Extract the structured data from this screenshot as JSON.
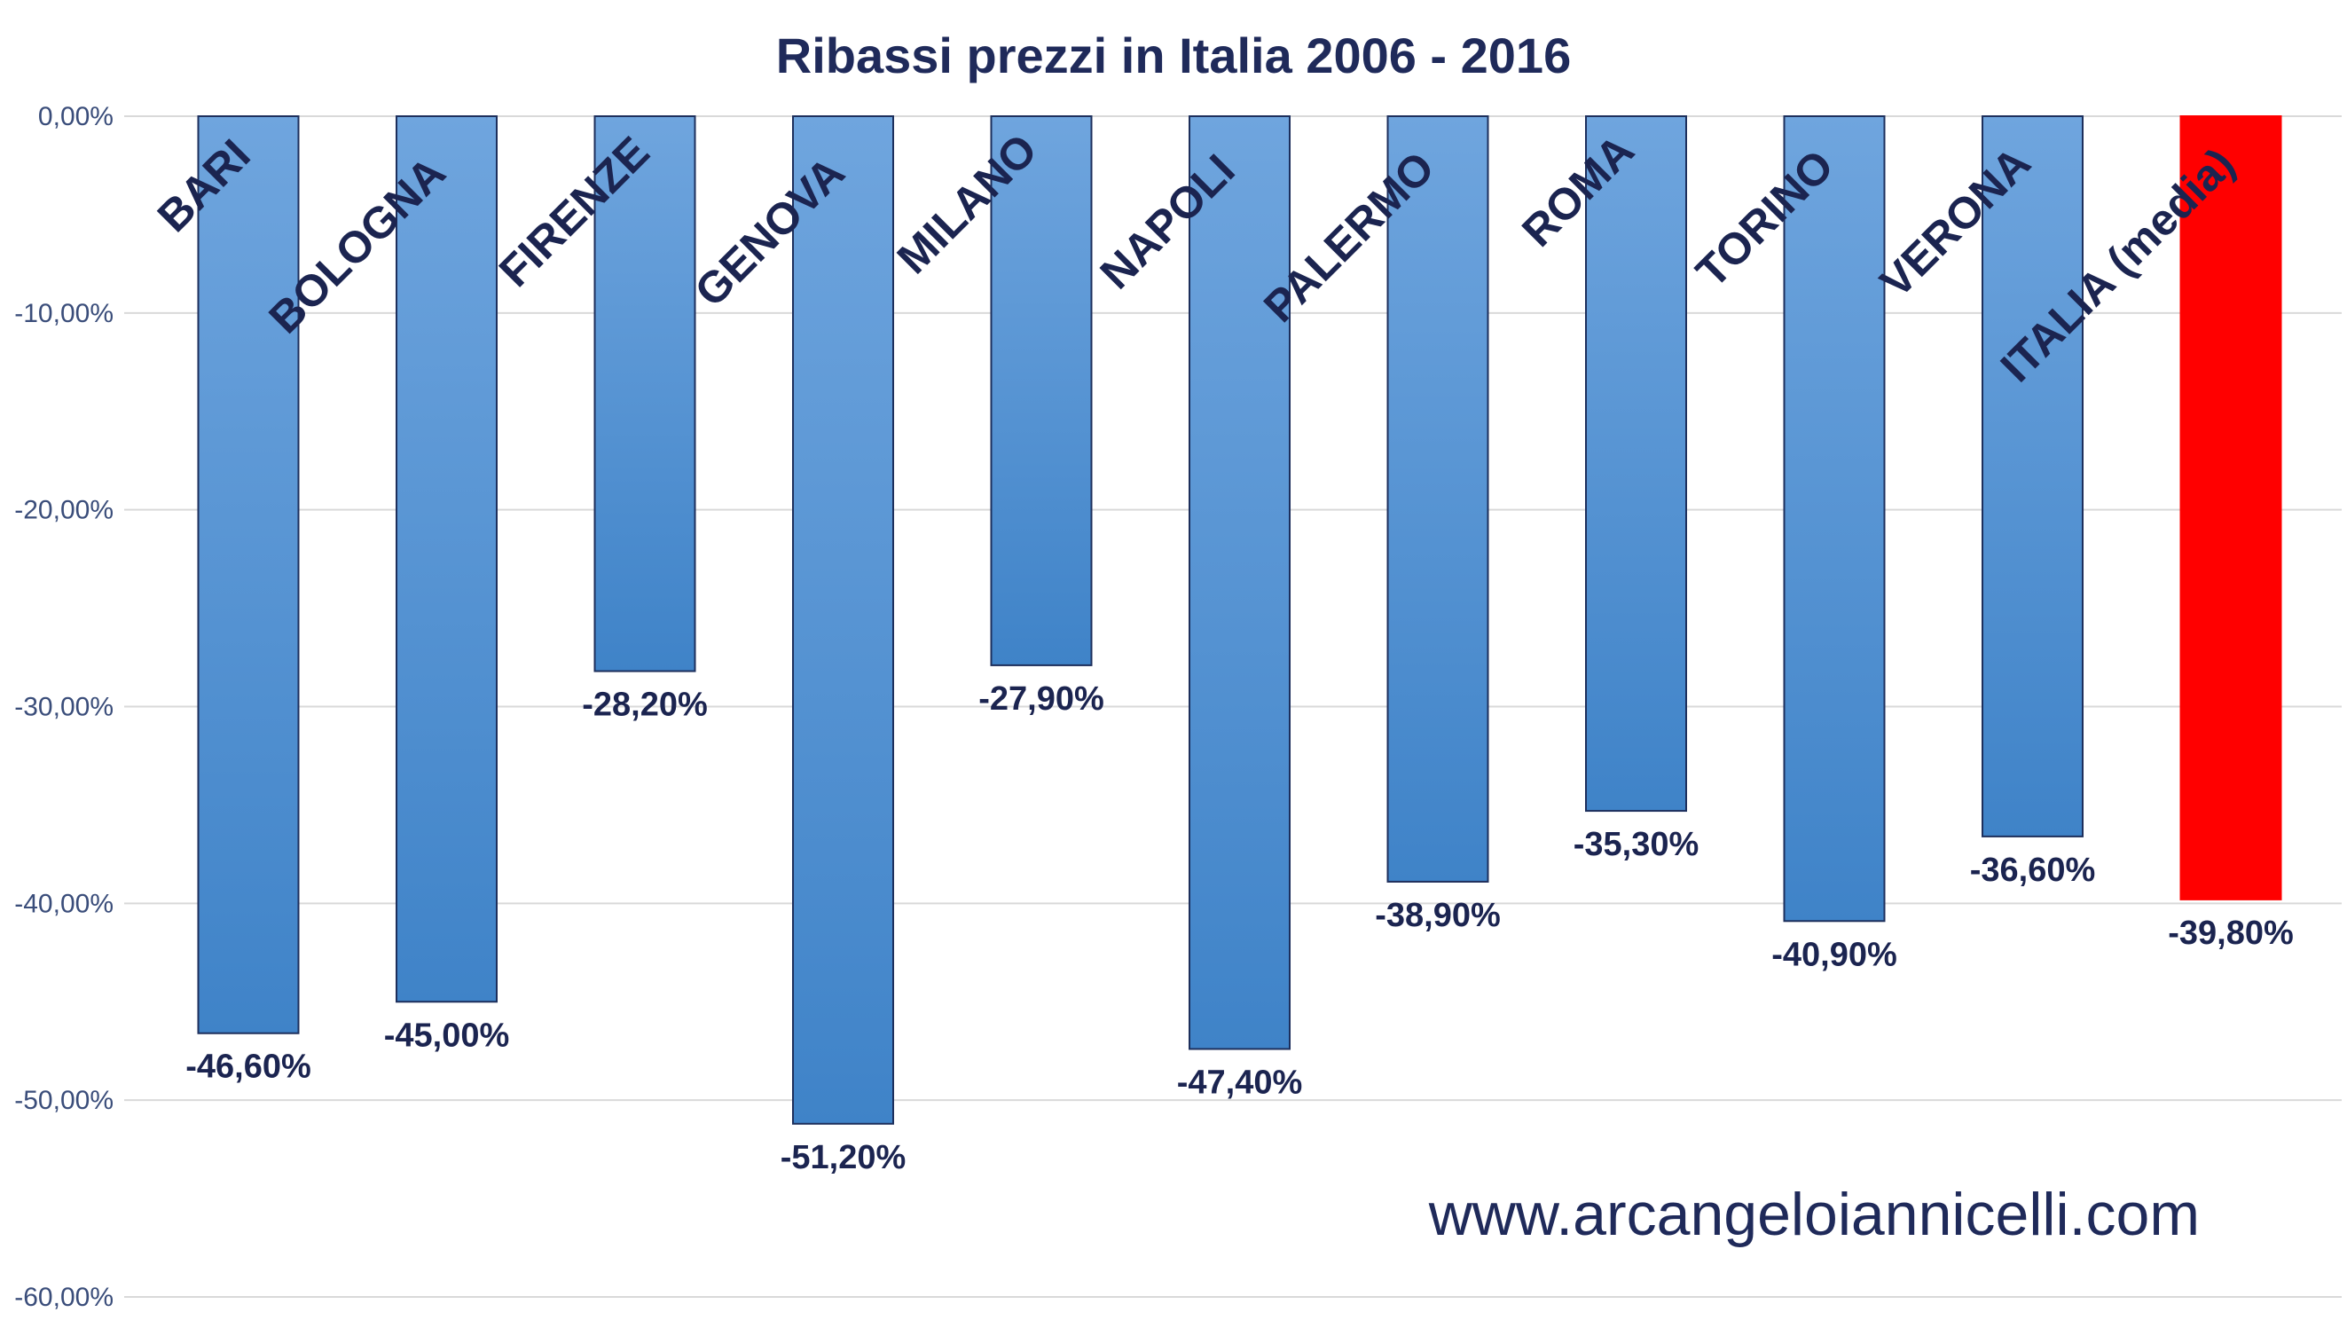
{
  "chart_data": {
    "type": "bar",
    "title": "Ribassi prezzi in Italia 2006 - 2016",
    "categories": [
      "BARI",
      "BOLOGNA",
      "FIRENZE",
      "GENOVA",
      "MILANO",
      "NAPOLI",
      "PALERMO",
      "ROMA",
      "TORINO",
      "VERONA",
      "ITALIA (media)"
    ],
    "values": [
      -46.6,
      -45.0,
      -28.2,
      -51.2,
      -27.9,
      -47.4,
      -38.9,
      -35.3,
      -40.9,
      -36.6,
      -39.8
    ],
    "value_labels": [
      "-46,60%",
      "-45,00%",
      "-28,20%",
      "-51,20%",
      "-27,90%",
      "-47,40%",
      "-38,90%",
      "-35,30%",
      "-40,90%",
      "-36,60%",
      "-39,80%"
    ],
    "ylim": [
      -60,
      0
    ],
    "yticks": [
      0,
      -10,
      -20,
      -30,
      -40,
      -50,
      -60
    ],
    "ytick_labels": [
      "0,00%",
      "-10,00%",
      "-20,00%",
      "-30,00%",
      "-40,00%",
      "-50,00%",
      "-60,00%"
    ],
    "grid": true,
    "legend": "none",
    "colors": {
      "bar_top": "#6fa5de",
      "bar_bottom": "#3f83c8",
      "bar_border": "#1d2f5c",
      "highlight": "#ff0000",
      "highlight_label": "#ff0000",
      "label_color": "#1b2450",
      "grid": "#d9d9d9"
    },
    "highlight_index": 10
  },
  "watermark": "www.arcangeloiannicelli.com"
}
